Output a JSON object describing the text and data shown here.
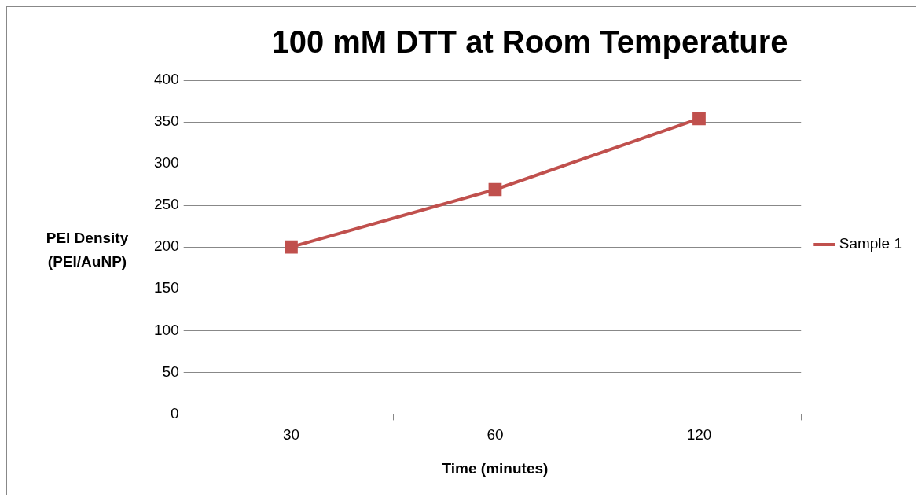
{
  "chart_data": {
    "type": "line",
    "title": "100 mM DTT at Room Temperature",
    "xlabel": "Time (minutes)",
    "ylabel": "PEI  Density (PEI/AuNP)",
    "categories": [
      "30",
      "60",
      "120"
    ],
    "series": [
      {
        "name": "Sample 1",
        "color": "#c0504d",
        "values": [
          200,
          269,
          354
        ]
      }
    ],
    "ylim": [
      0,
      400
    ],
    "yticks": [
      0,
      50,
      100,
      150,
      200,
      250,
      300,
      350,
      400
    ],
    "grid": "y",
    "legend": "right",
    "marker": "square"
  }
}
